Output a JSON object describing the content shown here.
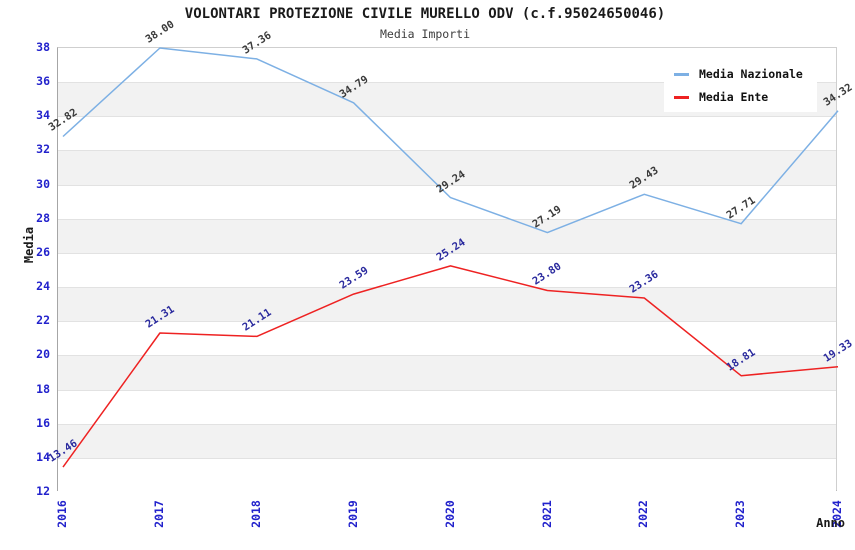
{
  "chart_data": {
    "type": "line",
    "title": "VOLONTARI PROTEZIONE CIVILE MURELLO ODV (c.f.95024650046)",
    "subtitle": "Media Importi",
    "xlabel": "Anno",
    "ylabel": "Media",
    "categories": [
      "2016",
      "2017",
      "2018",
      "2019",
      "2020",
      "2021",
      "2022",
      "2023",
      "2024"
    ],
    "series": [
      {
        "name": "Media Nazionale",
        "color": "#7db0e4",
        "label_color": "#3a3a3a",
        "values": [
          32.82,
          38.0,
          37.36,
          34.79,
          29.24,
          27.19,
          29.43,
          27.71,
          34.32
        ]
      },
      {
        "name": "Media Ente",
        "color": "#ee2222",
        "label_color": "#2a2a9e",
        "values": [
          13.46,
          21.31,
          21.11,
          23.59,
          25.24,
          23.8,
          23.36,
          18.81,
          19.33
        ]
      }
    ],
    "ylim": [
      12,
      38
    ],
    "yticks": [
      12,
      14,
      16,
      18,
      20,
      22,
      24,
      26,
      28,
      30,
      32,
      34,
      36,
      38
    ],
    "value_label_decimals": 2,
    "legend_position": "top-right",
    "grid": "horizontal-bands",
    "colors": {
      "tick_label": "#2222cc",
      "band_gray": "#f2f2f2",
      "band_white": "#ffffff",
      "gridline": "#e2e2e2",
      "axis_frame": "#a6a6a6"
    }
  }
}
